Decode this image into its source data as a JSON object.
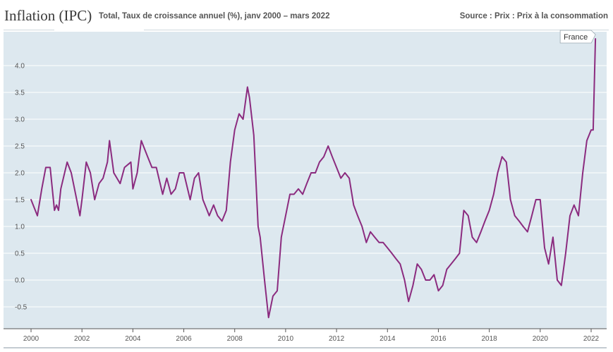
{
  "header": {
    "title": "Inflation (IPC)",
    "subtitle": "Total, Taux de croissance annuel (%), janv 2000 – mars 2022",
    "source": "Source : Prix : Prix à la consommation"
  },
  "colors": {
    "plot_background": "#dde8ef",
    "line": "#8b2b7f",
    "grid": "#ffffff"
  },
  "chart_data": {
    "type": "line",
    "title": "Inflation (IPC)",
    "subtitle": "Total, Taux de croissance annuel (%), janv 2000 – mars 2022",
    "xlabel": "",
    "ylabel": "",
    "xlim": [
      2000,
      2022.33
    ],
    "ylim": [
      -0.85,
      4.55
    ],
    "grid": true,
    "legend": "line-end-label",
    "x_ticks": [
      2000,
      2002,
      2004,
      2006,
      2008,
      2010,
      2012,
      2014,
      2016,
      2018,
      2020,
      2022
    ],
    "x_tick_labels": [
      "2000",
      "2002",
      "2004",
      "2006",
      "2008",
      "2010",
      "2012",
      "2014",
      "2016",
      "2018",
      "2020",
      "2022"
    ],
    "y_ticks": [
      -0.5,
      0,
      0.5,
      1,
      1.5,
      2,
      2.5,
      3,
      3.5,
      4
    ],
    "y_tick_labels": [
      "-0.5",
      "0.0",
      "0.5",
      "1.0",
      "1.5",
      "2.0",
      "2.5",
      "3.0",
      "3.5",
      "4.0"
    ],
    "series": [
      {
        "name": "France",
        "x": [
          2000.0,
          2000.25,
          2000.42,
          2000.58,
          2000.75,
          2000.92,
          2001.0,
          2001.08,
          2001.17,
          2001.42,
          2001.58,
          2001.75,
          2001.92,
          2002.0,
          2002.17,
          2002.33,
          2002.5,
          2002.67,
          2002.83,
          2003.0,
          2003.08,
          2003.25,
          2003.5,
          2003.67,
          2003.92,
          2004.0,
          2004.17,
          2004.33,
          2004.58,
          2004.75,
          2004.92,
          2005.17,
          2005.33,
          2005.5,
          2005.67,
          2005.83,
          2006.0,
          2006.25,
          2006.42,
          2006.58,
          2006.75,
          2006.92,
          2007.0,
          2007.17,
          2007.33,
          2007.5,
          2007.67,
          2007.83,
          2008.0,
          2008.17,
          2008.33,
          2008.5,
          2008.58,
          2008.75,
          2008.92,
          2009.0,
          2009.17,
          2009.33,
          2009.5,
          2009.67,
          2009.83,
          2010.0,
          2010.17,
          2010.33,
          2010.5,
          2010.67,
          2010.83,
          2011.0,
          2011.17,
          2011.33,
          2011.5,
          2011.67,
          2011.83,
          2012.0,
          2012.17,
          2012.33,
          2012.5,
          2012.67,
          2012.83,
          2013.0,
          2013.17,
          2013.33,
          2013.5,
          2013.67,
          2013.83,
          2014.0,
          2014.17,
          2014.33,
          2014.5,
          2014.67,
          2014.83,
          2015.0,
          2015.17,
          2015.33,
          2015.5,
          2015.67,
          2015.83,
          2016.0,
          2016.17,
          2016.33,
          2016.5,
          2016.67,
          2016.83,
          2017.0,
          2017.17,
          2017.33,
          2017.5,
          2017.67,
          2017.83,
          2018.0,
          2018.17,
          2018.33,
          2018.5,
          2018.67,
          2018.83,
          2019.0,
          2019.17,
          2019.33,
          2019.5,
          2019.67,
          2019.83,
          2020.0,
          2020.17,
          2020.33,
          2020.5,
          2020.67,
          2020.83,
          2021.0,
          2021.17,
          2021.33,
          2021.5,
          2021.67,
          2021.83,
          2022.0,
          2022.08,
          2022.17
        ],
        "values": [
          1.5,
          1.2,
          1.7,
          2.1,
          2.1,
          1.3,
          1.4,
          1.3,
          1.7,
          2.2,
          2.0,
          1.6,
          1.2,
          1.5,
          2.2,
          2.0,
          1.5,
          1.8,
          1.9,
          2.2,
          2.6,
          2.0,
          1.8,
          2.1,
          2.2,
          1.7,
          2.0,
          2.6,
          2.3,
          2.1,
          2.1,
          1.6,
          1.9,
          1.6,
          1.7,
          2.0,
          2.0,
          1.5,
          1.9,
          2.0,
          1.5,
          1.3,
          1.2,
          1.4,
          1.2,
          1.1,
          1.3,
          2.2,
          2.8,
          3.1,
          3.0,
          3.6,
          3.4,
          2.7,
          1.0,
          0.8,
          0.0,
          -0.7,
          -0.3,
          -0.2,
          0.8,
          1.2,
          1.6,
          1.6,
          1.7,
          1.6,
          1.8,
          2.0,
          2.0,
          2.2,
          2.3,
          2.5,
          2.3,
          2.1,
          1.9,
          2.0,
          1.9,
          1.4,
          1.2,
          1.0,
          0.7,
          0.9,
          0.8,
          0.7,
          0.7,
          0.6,
          0.5,
          0.4,
          0.3,
          0.0,
          -0.4,
          -0.1,
          0.3,
          0.2,
          0.0,
          0.0,
          0.1,
          -0.2,
          -0.1,
          0.2,
          0.3,
          0.4,
          0.5,
          1.3,
          1.2,
          0.8,
          0.7,
          0.9,
          1.1,
          1.3,
          1.6,
          2.0,
          2.3,
          2.2,
          1.5,
          1.2,
          1.1,
          1.0,
          0.9,
          1.2,
          1.5,
          1.5,
          0.6,
          0.3,
          0.8,
          0.0,
          -0.1,
          0.5,
          1.2,
          1.4,
          1.2,
          2.0,
          2.6,
          2.8,
          2.8,
          4.5
        ]
      }
    ]
  }
}
